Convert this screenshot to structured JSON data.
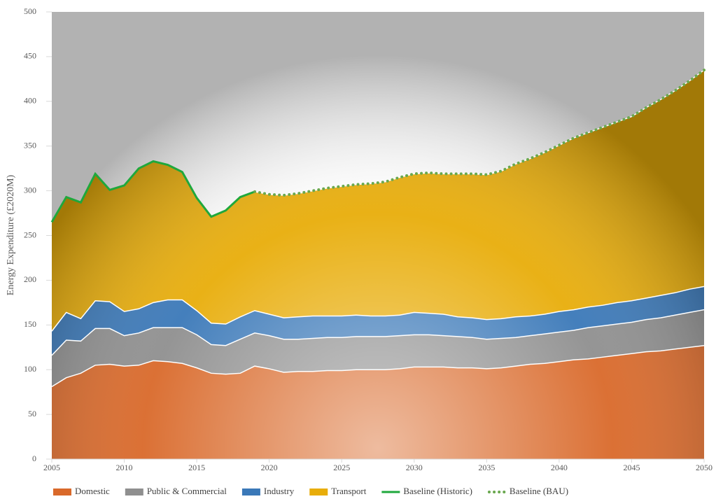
{
  "chart_data": {
    "type": "area",
    "stacked": true,
    "ylabel": "Energy Expenditure (£2020M)",
    "x": [
      2005,
      2006,
      2007,
      2008,
      2009,
      2010,
      2011,
      2012,
      2013,
      2014,
      2015,
      2016,
      2017,
      2018,
      2019,
      2020,
      2021,
      2022,
      2023,
      2024,
      2025,
      2026,
      2027,
      2028,
      2029,
      2030,
      2031,
      2032,
      2033,
      2034,
      2035,
      2036,
      2037,
      2038,
      2039,
      2040,
      2041,
      2042,
      2043,
      2044,
      2045,
      2046,
      2047,
      2048,
      2049,
      2050
    ],
    "xlim": [
      2005,
      2050
    ],
    "xticks": [
      2005,
      2010,
      2015,
      2020,
      2025,
      2030,
      2035,
      2040,
      2045,
      2050
    ],
    "ylim": [
      0,
      500
    ],
    "yticks": [
      0,
      50,
      100,
      150,
      200,
      250,
      300,
      350,
      400,
      450,
      500
    ],
    "legend": "bottom",
    "series": [
      {
        "name": "Domestic",
        "type": "area",
        "color": "#d9692a",
        "values": [
          81,
          91,
          96,
          105,
          106,
          104,
          105,
          110,
          109,
          107,
          102,
          96,
          95,
          96,
          104,
          101,
          97,
          98,
          98,
          99,
          99,
          100,
          100,
          100,
          101,
          103,
          103,
          103,
          102,
          102,
          101,
          102,
          104,
          106,
          107,
          109,
          111,
          112,
          114,
          116,
          118,
          120,
          121,
          123,
          125,
          127
        ]
      },
      {
        "name": "Public & Commercial",
        "type": "area",
        "color": "#8f8f8f",
        "values": [
          35,
          42,
          36,
          41,
          40,
          34,
          36,
          37,
          38,
          40,
          37,
          32,
          32,
          38,
          37,
          37,
          37,
          36,
          37,
          37,
          37,
          37,
          37,
          37,
          37,
          36,
          36,
          35,
          35,
          34,
          33,
          33,
          32,
          32,
          33,
          33,
          33,
          35,
          35,
          35,
          35,
          36,
          37,
          38,
          39,
          40
        ]
      },
      {
        "name": "Industry",
        "type": "area",
        "color": "#3a78b8",
        "values": [
          27,
          31,
          25,
          31,
          30,
          27,
          27,
          28,
          31,
          31,
          27,
          24,
          24,
          25,
          25,
          24,
          24,
          25,
          25,
          24,
          24,
          24,
          23,
          23,
          23,
          25,
          24,
          24,
          22,
          22,
          22,
          22,
          23,
          22,
          22,
          23,
          23,
          23,
          23,
          24,
          24,
          24,
          25,
          25,
          26,
          26
        ]
      },
      {
        "name": "Transport",
        "type": "area",
        "color": "#e8ad0a",
        "values": [
          122,
          129,
          130,
          142,
          125,
          141,
          157,
          158,
          151,
          143,
          126,
          119,
          127,
          134,
          133,
          134,
          137,
          138,
          140,
          143,
          145,
          146,
          148,
          150,
          154,
          155,
          157,
          157,
          160,
          161,
          162,
          165,
          171,
          176,
          181,
          186,
          192,
          195,
          199,
          202,
          206,
          213,
          219,
          226,
          233,
          242
        ]
      },
      {
        "name": "Baseline (Historic)",
        "type": "line",
        "dash": "solid",
        "color": "#1fa83c",
        "values": [
          265,
          293,
          287,
          319,
          301,
          306,
          325,
          333,
          329,
          321,
          292,
          271,
          278,
          293,
          299,
          null,
          null,
          null,
          null,
          null,
          null,
          null,
          null,
          null,
          null,
          null,
          null,
          null,
          null,
          null,
          null,
          null,
          null,
          null,
          null,
          null,
          null,
          null,
          null,
          null,
          null,
          null,
          null,
          null,
          null,
          null
        ]
      },
      {
        "name": "Baseline (BAU)",
        "type": "line",
        "dash": "dotted",
        "color": "#6aa84f",
        "values": [
          null,
          null,
          null,
          null,
          null,
          null,
          null,
          null,
          null,
          null,
          null,
          null,
          null,
          null,
          299,
          296,
          295,
          297,
          300,
          303,
          305,
          307,
          308,
          310,
          315,
          319,
          320,
          319,
          319,
          319,
          318,
          322,
          330,
          336,
          343,
          351,
          359,
          365,
          371,
          377,
          383,
          393,
          402,
          412,
          423,
          435
        ]
      }
    ]
  }
}
